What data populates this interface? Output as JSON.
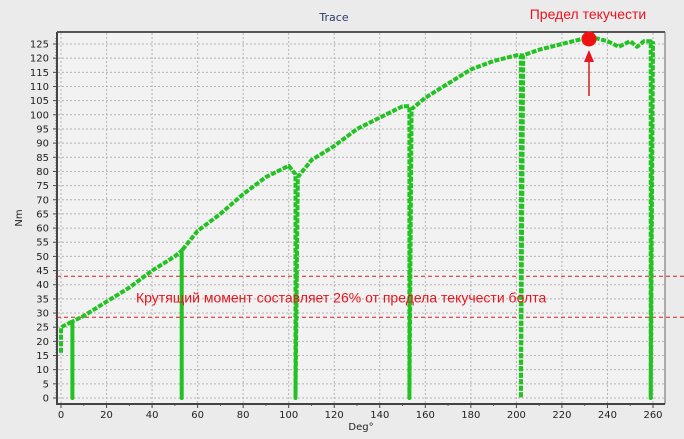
{
  "chart_data": {
    "type": "line",
    "title": "Trace",
    "xlabel": "Deg°",
    "ylabel": "Nm",
    "xlim": [
      0,
      260
    ],
    "ylim": [
      0,
      128
    ],
    "xticks": [
      0,
      20,
      40,
      60,
      80,
      100,
      120,
      140,
      160,
      180,
      200,
      220,
      240,
      260
    ],
    "yticks": [
      0,
      5,
      10,
      15,
      20,
      25,
      30,
      35,
      40,
      45,
      50,
      55,
      60,
      65,
      70,
      75,
      80,
      85,
      90,
      95,
      100,
      105,
      110,
      115,
      120,
      125
    ],
    "grid": true,
    "series": [
      {
        "name": "Trace",
        "color": "#22c222",
        "x": [
          0,
          0,
          0,
          5,
          5,
          5,
          10,
          20,
          30,
          40,
          50,
          53,
          53,
          53,
          55,
          60,
          70,
          80,
          90,
          100,
          103,
          103,
          104,
          110,
          120,
          130,
          140,
          150,
          153,
          153,
          154,
          160,
          170,
          180,
          190,
          200,
          202,
          202,
          203,
          210,
          220,
          230,
          235,
          240,
          245,
          250,
          253,
          256,
          258,
          259,
          259,
          260
        ],
        "y": [
          16,
          25,
          25,
          27,
          0,
          27,
          29,
          34,
          39,
          45,
          50,
          52,
          0,
          52,
          54,
          59,
          65,
          72,
          78,
          82,
          79,
          0,
          78,
          84,
          89,
          95,
          99,
          103,
          103,
          0,
          102,
          106,
          111,
          116,
          119,
          121,
          121,
          0,
          121,
          123,
          125,
          127,
          127,
          126,
          124,
          126,
          124,
          126,
          126,
          126,
          0,
          126
        ]
      }
    ],
    "annotations": [
      {
        "type": "point",
        "label": "Предел текучести",
        "x": 231,
        "y": 127,
        "color": "#e8141e"
      },
      {
        "type": "hline",
        "y": 43,
        "style": "dashed",
        "color": "#d42020"
      },
      {
        "type": "hline",
        "y": 28.5,
        "style": "dashed",
        "color": "#d42020"
      },
      {
        "type": "text",
        "text": "Крутящий момент составляет 26% от предела текучести болта",
        "x": 105,
        "y": 35.5,
        "color": "#e8141e"
      }
    ]
  },
  "labels": {
    "title": "Trace",
    "xlabel": "Deg°",
    "ylabel": "Nm",
    "yield_label": "Предел текучести",
    "band_label": "Крутящий момент составляет 26% от предела текучести болта"
  }
}
